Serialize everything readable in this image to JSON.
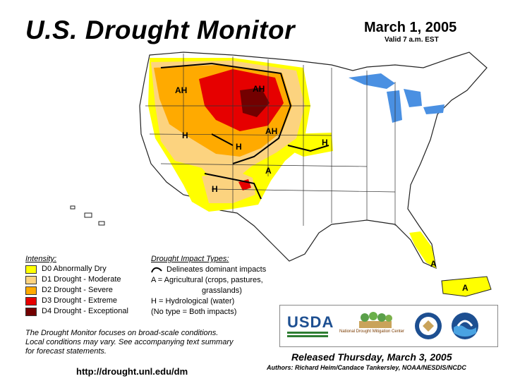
{
  "header": {
    "title": "U.S. Drought Monitor",
    "date": "March 1, 2005",
    "valid": "Valid 7 a.m. EST"
  },
  "map": {
    "impact_labels": [
      "AH",
      "AH",
      "AH",
      "H",
      "H",
      "H",
      "A",
      "H",
      "A",
      "A"
    ]
  },
  "legend": {
    "intensity_heading": "Intensity:",
    "items": [
      {
        "label": "D0 Abnormally Dry",
        "color": "#ffff00"
      },
      {
        "label": "D1 Drought - Moderate",
        "color": "#fcd37f"
      },
      {
        "label": "D2 Drought - Severe",
        "color": "#ffaa00"
      },
      {
        "label": "D3 Drought - Extreme",
        "color": "#e60000"
      },
      {
        "label": "D4 Drought - Exceptional",
        "color": "#730000"
      }
    ],
    "impact_heading": "Drought Impact Types:",
    "impact_lines": [
      "Delineates dominant impacts",
      "A = Agricultural (crops, pastures,",
      "grasslands)",
      "H = Hydrological (water)",
      "(No type = Both impacts)"
    ]
  },
  "footer": {
    "blurb": [
      "The Drought Monitor focuses on broad-scale conditions.",
      "Local conditions may vary.  See accompanying text summary",
      "for forecast statements."
    ],
    "url": "http://drought.unl.edu/dm",
    "released": "Released Thursday, March 3, 2005",
    "authors": "Authors:  Richard Heim/Candace Tankersley, NOAA/NESDIS/NCDC"
  },
  "logos": {
    "usda": "USDA",
    "ndmc": "National Drought Mitigation Center"
  },
  "colors": {
    "water": "#4a90e2",
    "land": "#ffffff",
    "boundary": "#333333"
  }
}
